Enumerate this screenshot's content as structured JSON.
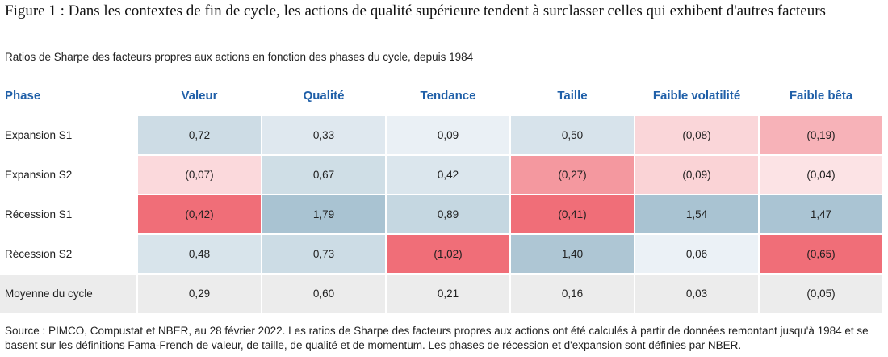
{
  "title": "Figure 1 : Dans les contextes de fin de cycle, les actions de qualité supérieure tendent à surclasser celles qui exhibent d'autres facteurs",
  "subtitle": "Ratios de Sharpe des facteurs propres aux actions en fonction des phases du cycle, depuis 1984",
  "source": "Source : PIMCO, Compustat et NBER, au 28 février 2022. Les ratios de Sharpe des facteurs propres aux actions ont été calculés à partir de données remontant jusqu'à 1984 et se basent sur les définitions Fama-French de valeur, de taille, de qualité et de momentum. Les phases de récession et d'expansion sont définies par NBER.",
  "colors": {
    "header_text": "#1f5fa8",
    "positive_strong": "#a9c3d2",
    "positive_light": "#eef3f7",
    "negative_strong": "#f06e78",
    "negative_light": "#fdf0f1",
    "average_row": "#ececec"
  },
  "chart_data": {
    "type": "table",
    "row_header": "Phase",
    "columns": [
      "Valeur",
      "Qualité",
      "Tendance",
      "Taille",
      "Faible volatilité",
      "Faible bêta"
    ],
    "rows": [
      {
        "label": "Expansion S1",
        "values": [
          "0,72",
          "0,33",
          "0,09",
          "0,50",
          "(0,08)",
          "(0,19)"
        ],
        "numeric": [
          0.72,
          0.33,
          0.09,
          0.5,
          -0.08,
          -0.19
        ]
      },
      {
        "label": "Expansion S2",
        "values": [
          "(0,07)",
          "0,67",
          "0,42",
          "(0,27)",
          "(0,09)",
          "(0,04)"
        ],
        "numeric": [
          -0.07,
          0.67,
          0.42,
          -0.27,
          -0.09,
          -0.04
        ]
      },
      {
        "label": "Récession S1",
        "values": [
          "(0,42)",
          "1,79",
          "0,89",
          "(0,41)",
          "1,54",
          "1,47"
        ],
        "numeric": [
          -0.42,
          1.79,
          0.89,
          -0.41,
          1.54,
          1.47
        ]
      },
      {
        "label": "Récession S2",
        "values": [
          "0,48",
          "0,73",
          "(1,02)",
          "1,40",
          "0,06",
          "(0,65)"
        ],
        "numeric": [
          0.48,
          0.73,
          -1.02,
          1.4,
          0.06,
          -0.65
        ]
      }
    ],
    "average_row": {
      "label": "Moyenne du cycle",
      "values": [
        "0,29",
        "0,60",
        "0,21",
        "0,16",
        "0,03",
        "(0,05)"
      ]
    }
  }
}
